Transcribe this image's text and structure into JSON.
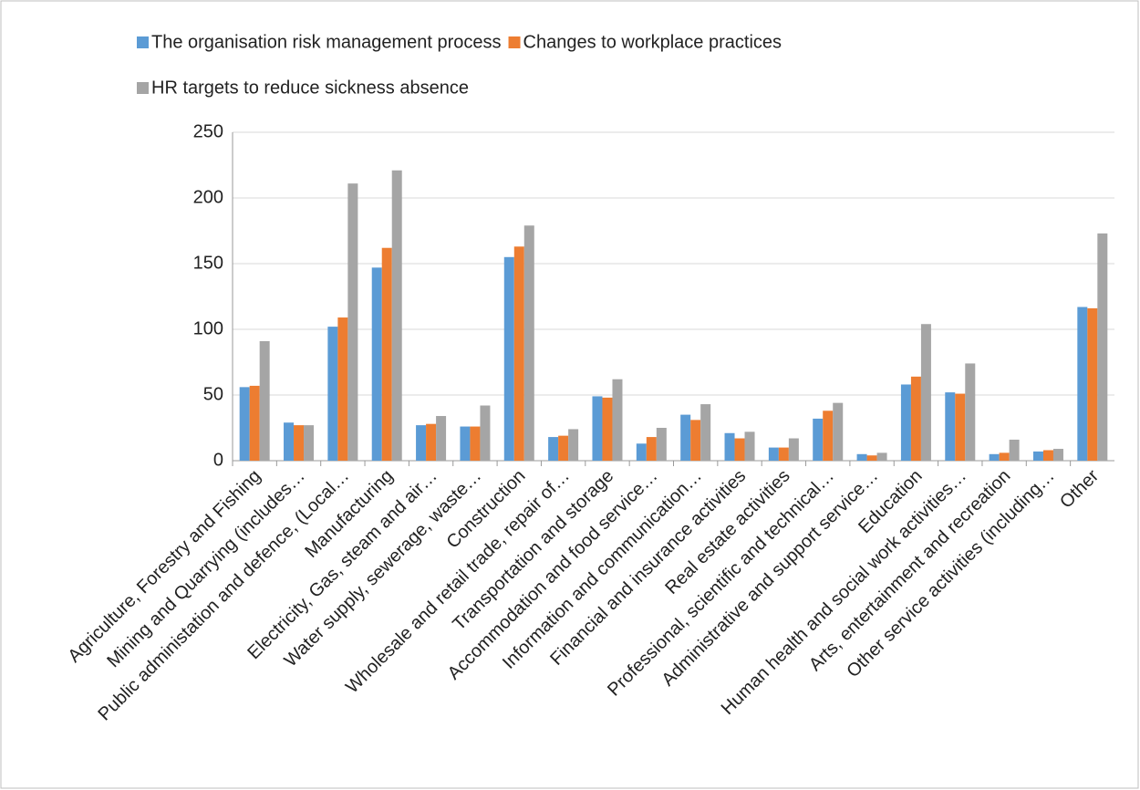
{
  "chart_data": {
    "type": "bar",
    "categories": [
      "Agriculture, Forestry and Fishing",
      "Mining and Quarrying (includes…",
      "Public administation and defence, (Local…",
      "Manufacturing",
      "Electricity, Gas, steam and air…",
      "Water supply, sewerage, waste…",
      "Construction",
      "Wholesale and retail trade, repair of…",
      "Transportation and storage",
      "Accommodation and food service…",
      "Information and communication…",
      "Financial and insurance activities",
      "Real estate activities",
      "Professional, scientific and technical…",
      "Administrative and support service…",
      "Education",
      "Human health and social work activities…",
      "Arts, entertainment and recreation",
      "Other service activities  (including…",
      "Other"
    ],
    "series": [
      {
        "name": "The organisation risk management process",
        "color": "#5b9bd5",
        "values": [
          56,
          29,
          102,
          147,
          27,
          26,
          155,
          18,
          49,
          13,
          35,
          21,
          10,
          32,
          5,
          58,
          52,
          5,
          7,
          117
        ]
      },
      {
        "name": "Changes to workplace practices",
        "color": "#ed7d31",
        "values": [
          57,
          27,
          109,
          162,
          28,
          26,
          163,
          19,
          48,
          18,
          31,
          17,
          10,
          38,
          4,
          64,
          51,
          6,
          8,
          116
        ]
      },
      {
        "name": "HR targets to reduce sickness absence",
        "color": "#a5a5a5",
        "values": [
          91,
          27,
          211,
          221,
          34,
          42,
          179,
          24,
          62,
          25,
          43,
          22,
          17,
          44,
          6,
          104,
          74,
          16,
          9,
          173
        ]
      }
    ],
    "ylim": [
      0,
      250
    ],
    "yticks": [
      0,
      50,
      100,
      150,
      200,
      250
    ],
    "grid": true,
    "legend": "top"
  }
}
